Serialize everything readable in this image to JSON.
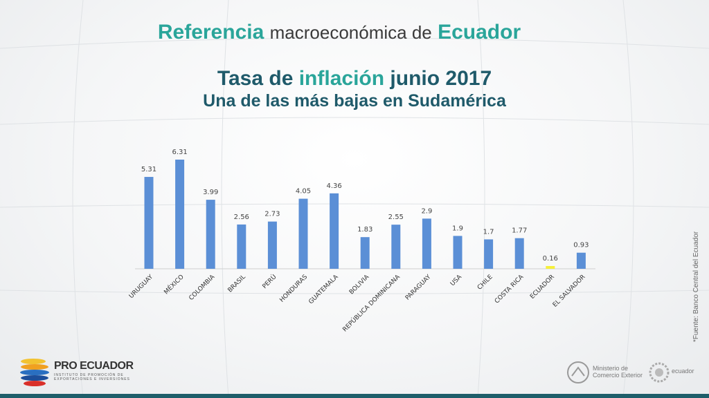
{
  "header": {
    "word1": "Referencia",
    "word2": "macroeconómica de",
    "word3": "Ecuador"
  },
  "title": {
    "part1": "Tasa de",
    "part2": "inflación",
    "part3": "junio 2017",
    "subtitle": "Una de las más bajas en Sudamérica"
  },
  "source_note": "*Fuente: Banco Central del Ecuador",
  "logos": {
    "left_name": "PRO ECUADOR",
    "left_tagline": "INSTITUTO DE PROMOCIÓN DE EXPORTACIONES E INVERSIONES",
    "ministry_line1": "Ministerio de",
    "ministry_line2": "Comercio Exterior",
    "right_brand": "ecuador"
  },
  "colors": {
    "bar": "#5b8fd6",
    "highlight": "#f5f03a",
    "teal": "#2aa59a",
    "navy": "#1f5a6a"
  },
  "chart_data": {
    "type": "bar",
    "categories": [
      "URUGUAY",
      "MÉXICO",
      "COLOMBIA",
      "BRASIL",
      "PERÚ",
      "HONDURAS",
      "GUATEMALA",
      "BOLIVIA",
      "REPÚBLICA DOMINICANA",
      "PARAGUAY",
      "USA",
      "CHILE",
      "COSTA RICA",
      "ECUADOR",
      "EL SALVADOR"
    ],
    "values": [
      5.31,
      6.31,
      3.99,
      2.56,
      2.73,
      4.05,
      4.36,
      1.83,
      2.55,
      2.9,
      1.9,
      1.7,
      1.77,
      0.16,
      0.93
    ],
    "value_labels": [
      "5.31",
      "6.31",
      "3.99",
      "2.56",
      "2.73",
      "4.05",
      "4.36",
      "1.83",
      "2.55",
      "2.9",
      "1.9",
      "1.7",
      "1.77",
      "0.16",
      "0.93"
    ],
    "highlight_category": "ECUADOR",
    "ylim": [
      0,
      6.31
    ],
    "grid": false,
    "legend": "none"
  }
}
